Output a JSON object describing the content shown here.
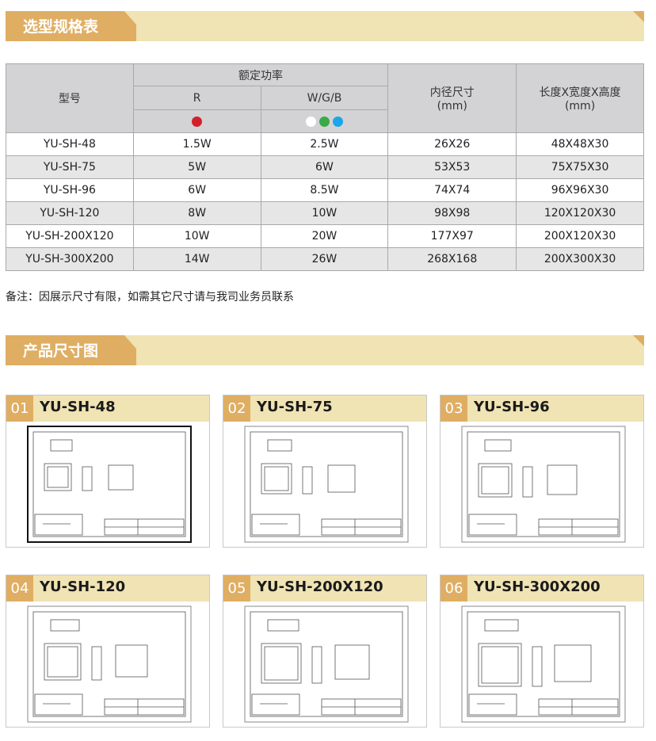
{
  "section1": {
    "title": "选型规格表"
  },
  "table": {
    "headers": {
      "model": "型号",
      "power": "额定功率",
      "r": "R",
      "wgb": "W/G/B",
      "inner": "内径尺寸",
      "inner_unit": "(mm)",
      "dims": "长度X宽度X高度",
      "dims_unit": "(mm)"
    },
    "colors": {
      "r": [
        "#d0212a"
      ],
      "wgb": [
        "#ffffff",
        "#3aaa48",
        "#1aa6e8"
      ]
    },
    "rows": [
      [
        "YU-SH-48",
        "1.5W",
        "2.5W",
        "26X26",
        "48X48X30"
      ],
      [
        "YU-SH-75",
        "5W",
        "6W",
        "53X53",
        "75X75X30"
      ],
      [
        "YU-SH-96",
        "6W",
        "8.5W",
        "74X74",
        "96X96X30"
      ],
      [
        "YU-SH-120",
        "8W",
        "10W",
        "98X98",
        "120X120X30"
      ],
      [
        "YU-SH-200X120",
        "10W",
        "20W",
        "177X97",
        "200X120X30"
      ],
      [
        "YU-SH-300X200",
        "14W",
        "26W",
        "268X168",
        "200X300X30"
      ]
    ]
  },
  "note": "备注：因展示尺寸有限，如需其它尺寸请与我司业务员联系",
  "section2": {
    "title": "产品尺寸图"
  },
  "cards": [
    {
      "num": "01",
      "name": "YU-SH-48"
    },
    {
      "num": "02",
      "name": "YU-SH-75"
    },
    {
      "num": "03",
      "name": "YU-SH-96"
    },
    {
      "num": "04",
      "name": "YU-SH-120"
    },
    {
      "num": "05",
      "name": "YU-SH-200X120"
    },
    {
      "num": "06",
      "name": "YU-SH-300X200"
    }
  ],
  "accent": "#dfae63",
  "accent_light": "#f0e3b4"
}
